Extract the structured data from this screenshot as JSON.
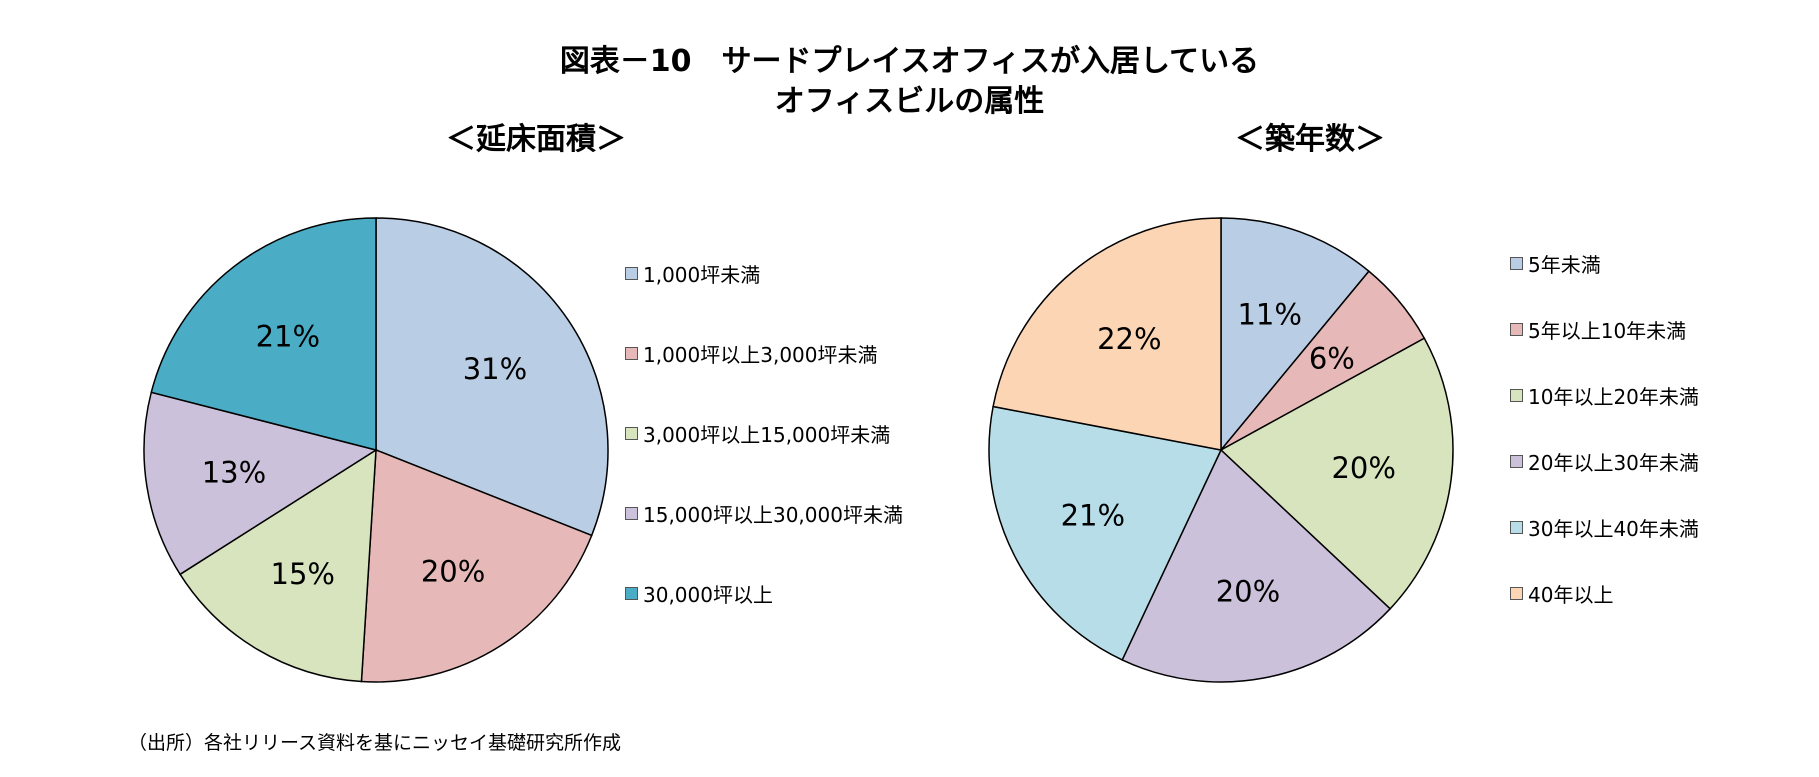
{
  "title": {
    "line1": "図表－10　サードプレイスオフィスが入居している",
    "line2": "オフィスビルの属性"
  },
  "chart_data": [
    {
      "type": "pie",
      "title": "＜延床面積＞",
      "categories": [
        "1,000坪未満",
        "1,000坪以上3,000坪未満",
        "3,000坪以上15,000坪未満",
        "15,000坪以上30,000坪未満",
        "30,000坪以上"
      ],
      "values": [
        31,
        20,
        15,
        13,
        21
      ],
      "labels": [
        "31%",
        "20%",
        "15%",
        "13%",
        "21%"
      ],
      "colors": [
        "#b9cde5",
        "#e6b9b8",
        "#d7e4bd",
        "#ccc1da",
        "#4bacc6"
      ],
      "legend": "right"
    },
    {
      "type": "pie",
      "title": "＜築年数＞",
      "categories": [
        "5年未満",
        "5年以上10年未満",
        "10年以上20年未満",
        "20年以上30年未満",
        "30年以上40年未満",
        "40年以上"
      ],
      "values": [
        11,
        6,
        20,
        20,
        21,
        22
      ],
      "labels": [
        "11%",
        "6%",
        "20%",
        "20%",
        "21%",
        "22%"
      ],
      "colors": [
        "#b9cde5",
        "#e6b9b8",
        "#d7e4bd",
        "#ccc1da",
        "#b7dee8",
        "#fcd5b5"
      ],
      "legend": "right"
    }
  ],
  "source": "（出所）各社リリース資料を基にニッセイ基礎研究所作成"
}
